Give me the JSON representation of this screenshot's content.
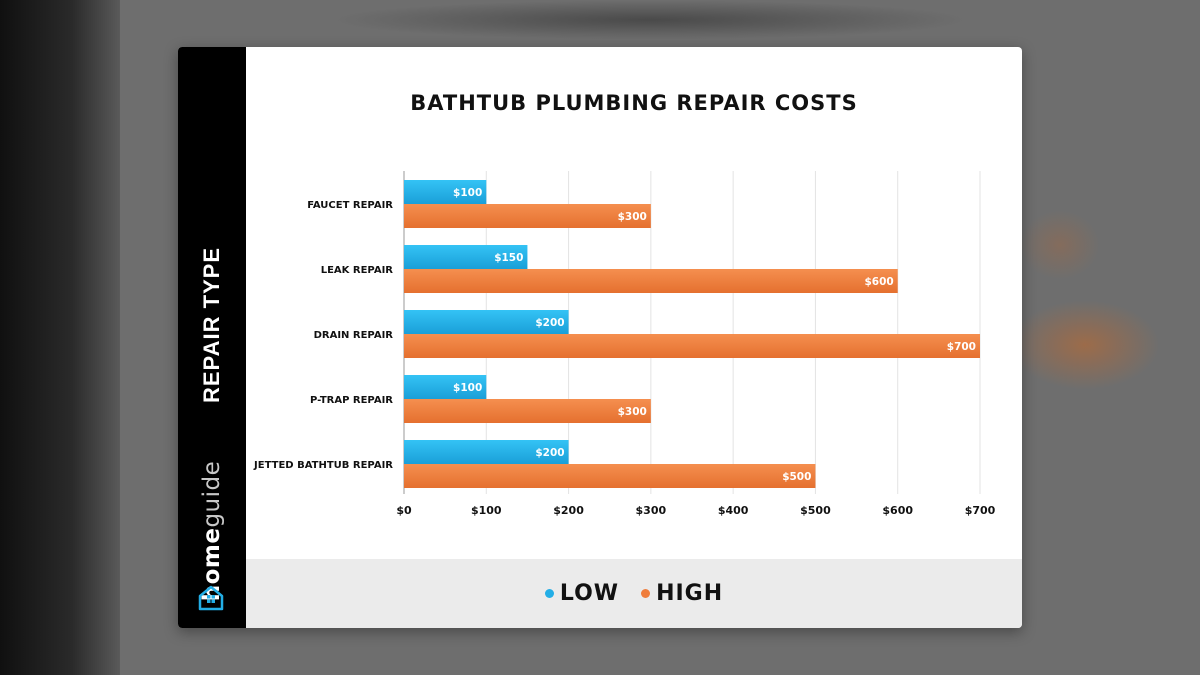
{
  "brand": {
    "part1": "home",
    "part2": "guide",
    "icon": "house-icon"
  },
  "side_label": "REPAIR TYPE",
  "colors": {
    "low": "#23aee6",
    "high": "#ef7d3c",
    "low_dark": "#1a93c7",
    "high_dark": "#d9692b"
  },
  "chart_data": {
    "type": "bar",
    "orientation": "horizontal",
    "title": "BATHTUB PLUMBING REPAIR COSTS",
    "ylabel": "REPAIR TYPE",
    "xlabel": "",
    "categories": [
      "FAUCET REPAIR",
      "LEAK REPAIR",
      "DRAIN REPAIR",
      "P-TRAP REPAIR",
      "JETTED BATHTUB REPAIR"
    ],
    "series": [
      {
        "name": "LOW",
        "values": [
          100,
          150,
          200,
          100,
          200
        ],
        "labels": [
          "$100",
          "$150",
          "$200",
          "$100",
          "$200"
        ]
      },
      {
        "name": "HIGH",
        "values": [
          300,
          600,
          700,
          300,
          500
        ],
        "labels": [
          "$300",
          "$600",
          "$700",
          "$300",
          "$500"
        ]
      }
    ],
    "xlim": [
      0,
      700
    ],
    "xticks": [
      0,
      100,
      200,
      300,
      400,
      500,
      600,
      700
    ],
    "xtick_labels": [
      "$0",
      "$100",
      "$200",
      "$300",
      "$400",
      "$500",
      "$600",
      "$700"
    ],
    "grid": true,
    "legend_position": "bottom"
  },
  "legend": [
    {
      "label": "LOW",
      "color": "#23aee6"
    },
    {
      "label": "HIGH",
      "color": "#ef7d3c"
    }
  ]
}
